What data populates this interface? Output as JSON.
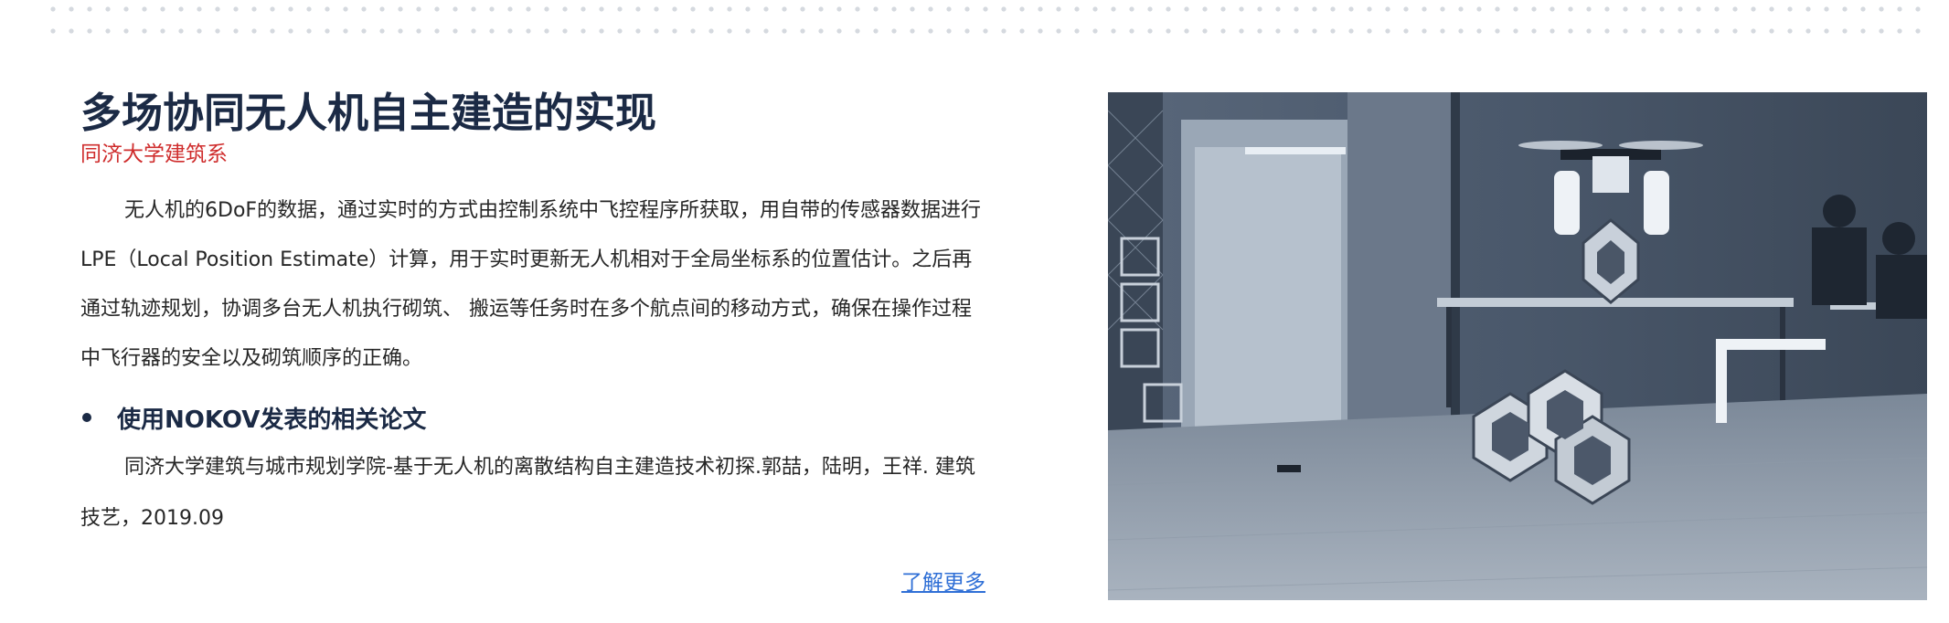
{
  "header": {
    "decoration": "dotted-pattern"
  },
  "article": {
    "title": "多场协同无人机自主建造的实现",
    "subtitle": "同济大学建筑系",
    "body": "无人机的6DoF的数据，通过实时的方式由控制系统中飞控程序所获取，用自带的传感器数据进行LPE（Local Position Estimate）计算，用于实时更新无人机相对于全局坐标系的位置估计。之后再通过轨迹规划，协调多台无人机执行砌筑、 搬运等任务时在多个航点间的移动方式，确保在操作过程中飞行器的安全以及砌筑顺序的正确。",
    "bullet": "使用NOKOV发表的相关论文",
    "citation": "同济大学建筑与城市规划学院-基于无人机的离散结构自主建造技术初探.郭喆，陆明，王祥. 建筑技艺，2019.09",
    "more_link": "了解更多"
  },
  "photo": {
    "subject": "drone-assembling-modular-blocks",
    "tone": "blue-gray"
  }
}
